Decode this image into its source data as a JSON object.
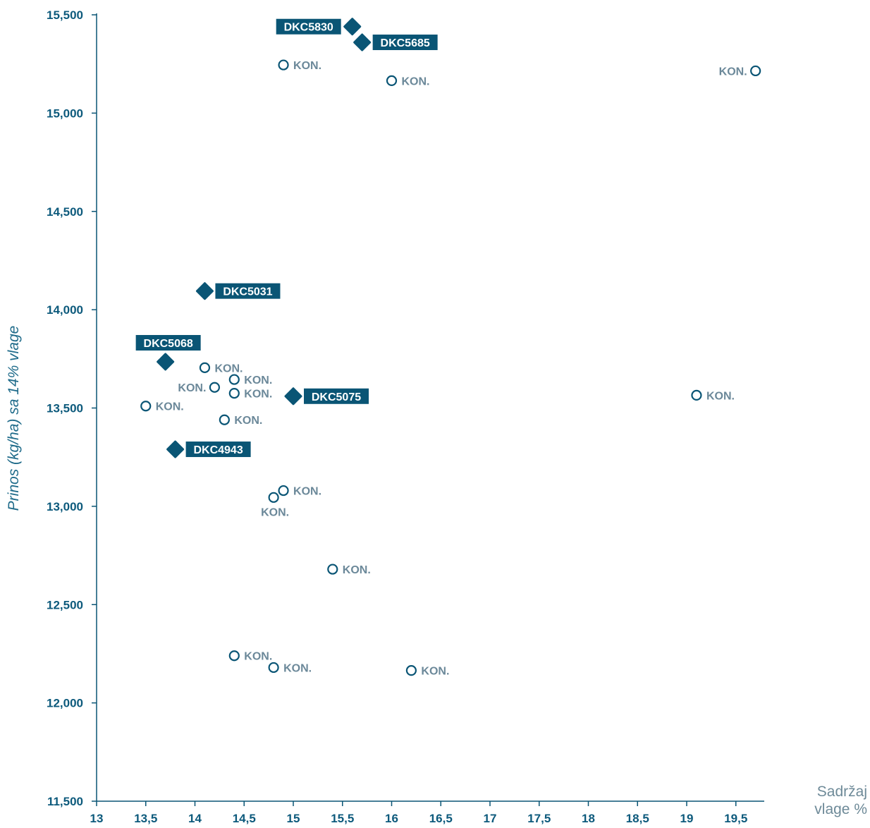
{
  "chart_data": {
    "type": "scatter",
    "xlabel": [
      "Sadržaj",
      "vlage %"
    ],
    "ylabel": "Prinos (kg/ha) sa 14% vlage",
    "xlim": [
      13,
      19.8
    ],
    "ylim": [
      11500,
      15500
    ],
    "x_ticks": [
      "13",
      "13,5",
      "14",
      "14,5",
      "15",
      "15,5",
      "16",
      "16,5",
      "17",
      "17,5",
      "18",
      "18,5",
      "19",
      "19,5"
    ],
    "y_ticks": [
      "11,500",
      "12,000",
      "12,500",
      "13,000",
      "13,500",
      "14,000",
      "14,500",
      "15,000",
      "15,500"
    ],
    "grid": false,
    "series": [
      {
        "marker": "filled-diamond",
        "color": "#0a5575",
        "points": [
          {
            "x": 15.6,
            "y": 15440,
            "label": "DKC5830",
            "label_side": "left"
          },
          {
            "x": 15.7,
            "y": 15360,
            "label": "DKC5685",
            "label_side": "right"
          },
          {
            "x": 14.1,
            "y": 14095,
            "label": "DKC5031",
            "label_side": "right"
          },
          {
            "x": 13.7,
            "y": 13735,
            "label": "DKC5068",
            "label_side": "above"
          },
          {
            "x": 15.0,
            "y": 13560,
            "label": "DKC5075",
            "label_side": "right"
          },
          {
            "x": 13.8,
            "y": 13290,
            "label": "DKC4943",
            "label_side": "right"
          }
        ]
      },
      {
        "marker": "open-circle",
        "color": "#0a5575",
        "points": [
          {
            "x": 14.9,
            "y": 15245,
            "label": "KON.",
            "label_side": "right"
          },
          {
            "x": 16.0,
            "y": 15165,
            "label": "KON.",
            "label_side": "right"
          },
          {
            "x": 19.7,
            "y": 15215,
            "label": "KON.",
            "label_side": "left"
          },
          {
            "x": 14.1,
            "y": 13705,
            "label": "KON.",
            "label_side": "right"
          },
          {
            "x": 14.4,
            "y": 13645,
            "label": "KON.",
            "label_side": "right"
          },
          {
            "x": 14.2,
            "y": 13605,
            "label": "KON.",
            "label_side": "left"
          },
          {
            "x": 14.4,
            "y": 13575,
            "label": "KON.",
            "label_side": "right"
          },
          {
            "x": 13.5,
            "y": 13510,
            "label": "KON.",
            "label_side": "right"
          },
          {
            "x": 14.3,
            "y": 13440,
            "label": "KON.",
            "label_side": "right"
          },
          {
            "x": 19.1,
            "y": 13565,
            "label": "KON.",
            "label_side": "right"
          },
          {
            "x": 14.9,
            "y": 13080,
            "label": "KON.",
            "label_side": "right"
          },
          {
            "x": 14.8,
            "y": 13045,
            "label": "KON.",
            "label_side": "below"
          },
          {
            "x": 15.4,
            "y": 12680,
            "label": "KON.",
            "label_side": "right"
          },
          {
            "x": 14.4,
            "y": 12240,
            "label": "KON.",
            "label_side": "right"
          },
          {
            "x": 14.8,
            "y": 12180,
            "label": "KON.",
            "label_side": "right"
          },
          {
            "x": 16.2,
            "y": 12165,
            "label": "KON.",
            "label_side": "right"
          }
        ]
      }
    ]
  },
  "colors": {
    "primary": "#0a5575",
    "axis_tick_label": "#0d5a7c",
    "point_label": "#6b8899",
    "ytitle": "#1f6b8a",
    "xtitle": "#6e8a98"
  }
}
